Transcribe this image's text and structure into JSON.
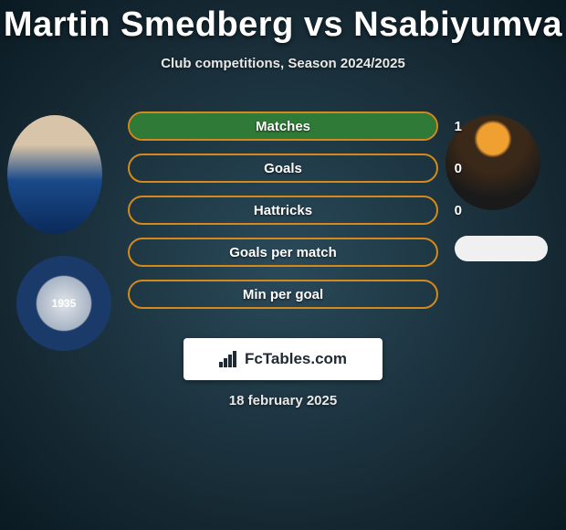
{
  "header": {
    "title": "Martin Smedberg vs Nsabiyumva",
    "subtitle": "Club competitions, Season 2024/2025"
  },
  "players": {
    "left": {
      "name": "Martin Smedberg"
    },
    "right": {
      "name": "Nsabiyumva"
    }
  },
  "club_left_year": "1935",
  "stats": {
    "border_color": "#d48a1a",
    "fill_color": "#2f7a36",
    "rows": [
      {
        "label": "Matches",
        "value_right": "1",
        "fill_pct": 100
      },
      {
        "label": "Goals",
        "value_right": "0",
        "fill_pct": 0
      },
      {
        "label": "Hattricks",
        "value_right": "0",
        "fill_pct": 0
      },
      {
        "label": "Goals per match",
        "value_right": "",
        "fill_pct": 0
      },
      {
        "label": "Min per goal",
        "value_right": "",
        "fill_pct": 0
      }
    ]
  },
  "brand": "FcTables.com",
  "date": "18 february 2025",
  "colors": {
    "text": "#ffffff",
    "badge_bg": "#ffffff",
    "badge_text": "#1e2a34"
  }
}
